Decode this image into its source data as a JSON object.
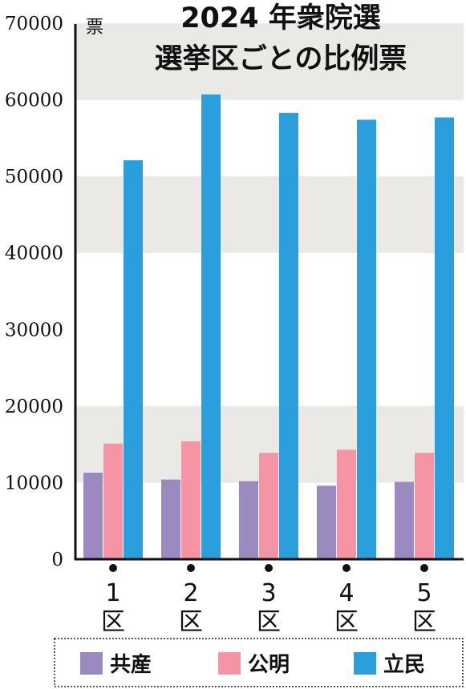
{
  "chart_data": {
    "type": "bar",
    "title_line1": "2024 年衆院選",
    "title_line2": "選挙区ごとの比例票",
    "ylabel": "票",
    "ylim": [
      0,
      70000
    ],
    "yticks": [
      "0",
      "10000",
      "20000",
      "30000",
      "40000",
      "50000",
      "60000",
      "70000"
    ],
    "categories": [
      {
        "num": "1",
        "suffix": "区"
      },
      {
        "num": "2",
        "suffix": "区"
      },
      {
        "num": "3",
        "suffix": "区"
      },
      {
        "num": "4",
        "suffix": "区"
      },
      {
        "num": "5",
        "suffix": "区"
      }
    ],
    "series": [
      {
        "name": "共産",
        "color": "#9b8ac0",
        "values": [
          11300,
          10400,
          10200,
          9600,
          10100
        ]
      },
      {
        "name": "公明",
        "color": "#f494a4",
        "values": [
          15100,
          15400,
          13900,
          14300,
          13900
        ]
      },
      {
        "name": "立民",
        "color": "#2b9fdb",
        "values": [
          52100,
          60700,
          58300,
          57400,
          57700
        ]
      }
    ],
    "grid": "alternating bands",
    "band_color": "#ebe9e6",
    "legend_position": "bottom"
  }
}
